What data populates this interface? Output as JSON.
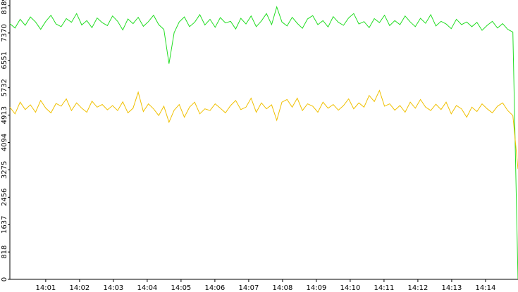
{
  "chart_data": {
    "type": "line",
    "xlim": [
      -0.06,
      14.96
    ],
    "xticks": [
      {
        "value": 1,
        "label": "14:01"
      },
      {
        "value": 2,
        "label": "14:02"
      },
      {
        "value": 3,
        "label": "14:03"
      },
      {
        "value": 4,
        "label": "14:04"
      },
      {
        "value": 5,
        "label": "14:05"
      },
      {
        "value": 6,
        "label": "14:06"
      },
      {
        "value": 7,
        "label": "14:07"
      },
      {
        "value": 8,
        "label": "14:08"
      },
      {
        "value": 9,
        "label": "14:09"
      },
      {
        "value": 10,
        "label": "14:10"
      },
      {
        "value": 11,
        "label": "14:11"
      },
      {
        "value": 12,
        "label": "14:12"
      },
      {
        "value": 13,
        "label": "14:13"
      },
      {
        "value": 14,
        "label": "14:14"
      }
    ],
    "ylim": [
      0,
      8357
    ],
    "yticks": [
      0,
      818,
      1637,
      2456,
      3275,
      4094,
      4913,
      5732,
      6551,
      7370,
      8189
    ],
    "series": [
      {
        "color": "#22dd22",
        "values": [
          7650,
          7520,
          7780,
          7600,
          7850,
          7700,
          7480,
          7720,
          7900,
          7640,
          7560,
          7800,
          7690,
          7950,
          7610,
          7740,
          7530,
          7820,
          7680,
          7590,
          7880,
          7720,
          7460,
          7790,
          7650,
          7840,
          7570,
          7710,
          7900,
          7620,
          7480,
          6450,
          7380,
          7700,
          7850,
          7560,
          7690,
          7920,
          7610,
          7780,
          7540,
          7830,
          7670,
          7720,
          7490,
          7810,
          7640,
          7880,
          7560,
          7730,
          7950,
          7620,
          8150,
          7700,
          7580,
          7840,
          7660,
          7510,
          7790,
          7890,
          7620,
          7740,
          7550,
          7860,
          7690,
          7600,
          7820,
          7950,
          7640,
          7710,
          7530,
          7800,
          7680,
          7900,
          7590,
          7740,
          7620,
          7880,
          7700,
          7560,
          7810,
          7660,
          7920,
          7580,
          7720,
          7640,
          7500,
          7780,
          7620,
          7700,
          7560,
          7690,
          7450,
          7600,
          7720,
          7520,
          7650,
          7480,
          7400,
          0
        ]
      },
      {
        "color": "#f0c000",
        "values": [
          5150,
          4950,
          5300,
          5080,
          5220,
          5000,
          5350,
          5120,
          4980,
          5260,
          5180,
          5400,
          5050,
          5280,
          5120,
          5000,
          5330,
          5150,
          5230,
          5070,
          5200,
          5050,
          5310,
          4980,
          5120,
          5600,
          5020,
          5250,
          5100,
          4900,
          5180,
          4700,
          5060,
          5230,
          4850,
          5150,
          5300,
          4950,
          5100,
          5050,
          5250,
          5120,
          4980,
          5200,
          5350,
          5080,
          5150,
          5420,
          5000,
          5280,
          5100,
          5220,
          4760,
          5300,
          5380,
          5150,
          5420,
          5050,
          5250,
          5180,
          5000,
          5300,
          5120,
          5230,
          5060,
          5200,
          5400,
          5100,
          5280,
          5150,
          5500,
          5320,
          5650,
          5180,
          5250,
          5060,
          5200,
          5000,
          5300,
          5120,
          5380,
          5150,
          5050,
          5240,
          5080,
          5300,
          4950,
          5200,
          5100,
          4850,
          5150,
          5020,
          5250,
          5100,
          4980,
          5180,
          5280,
          5050,
          4900,
          3300
        ]
      }
    ]
  }
}
